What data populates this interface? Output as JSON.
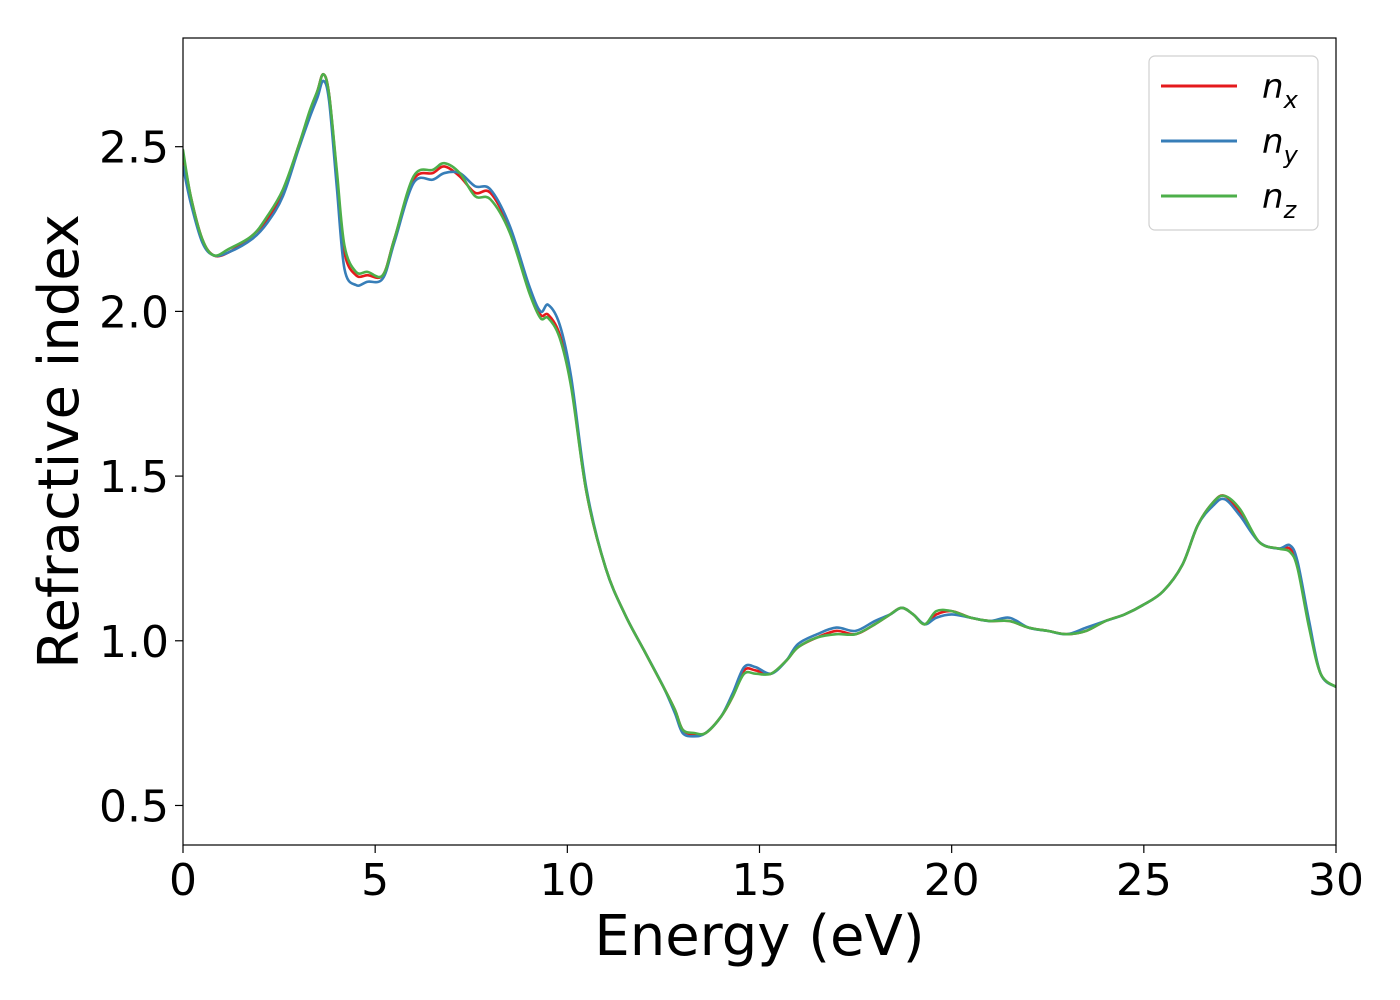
{
  "chart_data": {
    "type": "line",
    "xlabel": "Energy (eV)",
    "ylabel": "Refractive index",
    "xlim": [
      0,
      30
    ],
    "ylim": [
      0.38,
      2.83
    ],
    "xticks": [
      0,
      5,
      10,
      15,
      20,
      25,
      30
    ],
    "yticks": [
      0.5,
      1.0,
      1.5,
      2.0,
      2.5
    ],
    "xtick_labels": [
      "0",
      "5",
      "10",
      "15",
      "20",
      "25",
      "30"
    ],
    "ytick_labels": [
      "0.5",
      "1.0",
      "1.5",
      "2.0",
      "2.5"
    ],
    "grid": false,
    "legend_position": "top-right",
    "x": [
      0,
      0.2,
      0.5,
      0.8,
      1.2,
      1.8,
      2.2,
      2.6,
      3.0,
      3.3,
      3.5,
      3.65,
      3.8,
      4.0,
      4.2,
      4.5,
      4.8,
      5.2,
      5.5,
      6.0,
      6.5,
      6.8,
      7.2,
      7.6,
      8.0,
      8.5,
      9.0,
      9.3,
      9.5,
      9.8,
      10.1,
      10.5,
      11.0,
      11.5,
      12.0,
      12.5,
      12.8,
      13.0,
      13.3,
      13.6,
      14.0,
      14.3,
      14.6,
      14.9,
      15.3,
      15.7,
      16.0,
      16.5,
      17.0,
      17.5,
      18.0,
      18.4,
      18.7,
      19.0,
      19.3,
      19.6,
      20.0,
      20.5,
      21.0,
      21.5,
      22.0,
      22.5,
      23.0,
      23.5,
      24.0,
      24.5,
      25.0,
      25.5,
      26.0,
      26.4,
      26.8,
      27.1,
      27.5,
      28.0,
      28.5,
      28.8,
      29.0,
      29.3,
      29.6,
      30.0
    ],
    "series": [
      {
        "name": "n",
        "subscript": "x",
        "color": "#e41a1c",
        "values": [
          2.48,
          2.35,
          2.22,
          2.17,
          2.18,
          2.23,
          2.28,
          2.36,
          2.5,
          2.6,
          2.67,
          2.72,
          2.66,
          2.42,
          2.18,
          2.11,
          2.11,
          2.11,
          2.22,
          2.4,
          2.42,
          2.44,
          2.41,
          2.36,
          2.36,
          2.25,
          2.07,
          1.99,
          1.99,
          1.93,
          1.78,
          1.45,
          1.22,
          1.08,
          0.97,
          0.86,
          0.79,
          0.73,
          0.715,
          0.72,
          0.77,
          0.83,
          0.91,
          0.91,
          0.9,
          0.94,
          0.98,
          1.01,
          1.03,
          1.02,
          1.05,
          1.08,
          1.1,
          1.08,
          1.05,
          1.08,
          1.09,
          1.07,
          1.06,
          1.06,
          1.04,
          1.03,
          1.02,
          1.03,
          1.06,
          1.08,
          1.11,
          1.15,
          1.23,
          1.35,
          1.42,
          1.44,
          1.39,
          1.3,
          1.28,
          1.28,
          1.23,
          1.05,
          0.9,
          0.86
        ]
      },
      {
        "name": "n",
        "subscript": "y",
        "color": "#377eb8",
        "values": [
          2.44,
          2.33,
          2.21,
          2.17,
          2.18,
          2.22,
          2.27,
          2.35,
          2.49,
          2.59,
          2.65,
          2.7,
          2.64,
          2.38,
          2.13,
          2.08,
          2.09,
          2.1,
          2.21,
          2.39,
          2.4,
          2.42,
          2.42,
          2.38,
          2.37,
          2.26,
          2.08,
          2.0,
          2.02,
          1.96,
          1.8,
          1.46,
          1.22,
          1.08,
          0.97,
          0.86,
          0.78,
          0.72,
          0.71,
          0.72,
          0.77,
          0.84,
          0.92,
          0.92,
          0.9,
          0.94,
          0.99,
          1.02,
          1.04,
          1.03,
          1.06,
          1.08,
          1.1,
          1.08,
          1.05,
          1.07,
          1.08,
          1.07,
          1.06,
          1.07,
          1.04,
          1.03,
          1.02,
          1.04,
          1.06,
          1.08,
          1.11,
          1.15,
          1.23,
          1.35,
          1.41,
          1.43,
          1.38,
          1.3,
          1.28,
          1.29,
          1.24,
          1.06,
          0.9,
          0.86
        ]
      },
      {
        "name": "n",
        "subscript": "z",
        "color": "#4daf4a",
        "values": [
          2.49,
          2.35,
          2.22,
          2.17,
          2.19,
          2.23,
          2.29,
          2.37,
          2.5,
          2.61,
          2.67,
          2.72,
          2.66,
          2.43,
          2.2,
          2.12,
          2.12,
          2.11,
          2.22,
          2.41,
          2.43,
          2.45,
          2.42,
          2.35,
          2.34,
          2.24,
          2.06,
          1.98,
          1.98,
          1.92,
          1.77,
          1.45,
          1.22,
          1.08,
          0.97,
          0.86,
          0.79,
          0.73,
          0.72,
          0.72,
          0.77,
          0.83,
          0.9,
          0.9,
          0.9,
          0.94,
          0.98,
          1.01,
          1.02,
          1.02,
          1.05,
          1.08,
          1.1,
          1.08,
          1.05,
          1.09,
          1.09,
          1.07,
          1.06,
          1.06,
          1.04,
          1.03,
          1.02,
          1.03,
          1.06,
          1.08,
          1.11,
          1.15,
          1.23,
          1.35,
          1.42,
          1.44,
          1.4,
          1.3,
          1.28,
          1.27,
          1.22,
          1.04,
          0.9,
          0.86
        ]
      }
    ]
  }
}
